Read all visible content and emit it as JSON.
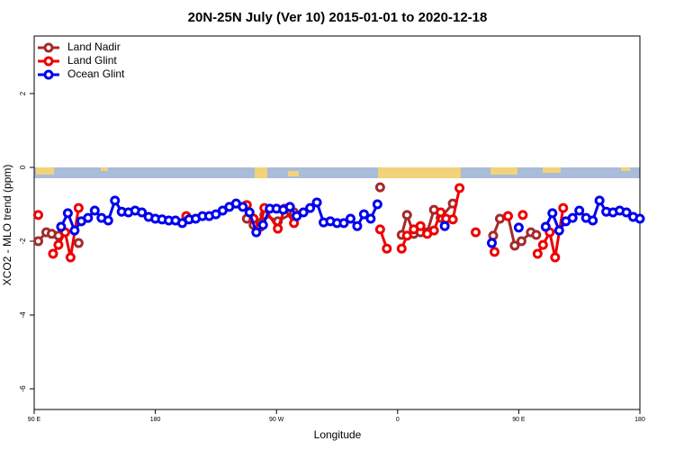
{
  "chart_data": {
    "type": "line",
    "title": "20N-25N July (Ver 10)   2015-01-01 to 2020-12-18",
    "x_label": "Longitude",
    "y_label": "XCO2 - MLO trend (ppm)",
    "xlim": [
      90,
      540
    ],
    "xticks": [
      {
        "value": 90,
        "label": "90 E"
      },
      {
        "value": 180,
        "label": "180"
      },
      {
        "value": 270,
        "label": "90 W"
      },
      {
        "value": 360,
        "label": "0"
      },
      {
        "value": 450,
        "label": "90 E"
      },
      {
        "value": 540,
        "label": "180"
      }
    ],
    "ylim": [
      -6.56,
      3.56
    ],
    "yticks": [
      2,
      0,
      -2,
      -4,
      -6
    ],
    "legend": "top-left",
    "series": [
      {
        "name": "Land Nadir",
        "color": "#a52a2a",
        "x": [
          93,
          99,
          103,
          108,
          null,
          123,
          null,
          248,
          253,
          261,
          271,
          283,
          null,
          347,
          null,
          363,
          367,
          372,
          377,
          382,
          387,
          392,
          401,
          null,
          431,
          436,
          442,
          447,
          452,
          459,
          463
        ],
        "values": [
          -2.0,
          -1.76,
          -1.8,
          -1.85,
          null,
          -2.05,
          null,
          -1.39,
          -1.56,
          -1.29,
          -1.46,
          -1.22,
          null,
          -0.54,
          null,
          -1.83,
          -1.29,
          -1.8,
          -1.76,
          -1.76,
          -1.15,
          -1.37,
          -0.98,
          null,
          -1.85,
          -1.39,
          -1.32,
          -2.12,
          -2.0,
          -1.76,
          -1.83
        ]
      },
      {
        "name": "Land Glint",
        "color": "#ee0000",
        "x": [
          93,
          null,
          104,
          108,
          113,
          117,
          123,
          null,
          203,
          null,
          248,
          253,
          258,
          261,
          271,
          276,
          283,
          null,
          347,
          352,
          null,
          363,
          367,
          372,
          377,
          382,
          387,
          392,
          396,
          401,
          406,
          null,
          418,
          null,
          432,
          null,
          442,
          null,
          453,
          null,
          464,
          468,
          473,
          477,
          483
        ],
        "values": [
          -1.29,
          null,
          -2.34,
          -2.1,
          -1.76,
          -2.44,
          -1.1,
          null,
          -1.32,
          null,
          -1.02,
          -1.39,
          -1.61,
          -1.1,
          -1.66,
          -1.12,
          -1.51,
          null,
          -1.68,
          -2.2,
          null,
          -2.2,
          -1.85,
          -1.68,
          -1.59,
          -1.8,
          -1.71,
          -1.22,
          -1.39,
          -1.41,
          -0.56,
          null,
          -1.76,
          null,
          -2.29,
          null,
          -1.32,
          null,
          -1.29,
          null,
          -2.34,
          -2.1,
          -1.76,
          -2.44,
          -1.1
        ]
      },
      {
        "name": "Ocean Glint",
        "color": "#0000ee",
        "x": [
          110,
          115,
          120,
          125,
          130,
          135,
          140,
          145,
          150,
          155,
          160,
          165,
          170,
          175,
          180,
          185,
          190,
          195,
          200,
          205,
          210,
          215,
          220,
          225,
          230,
          235,
          240,
          245,
          250,
          255,
          260,
          265,
          270,
          275,
          280,
          285,
          290,
          295,
          300,
          305,
          310,
          315,
          320,
          325,
          330,
          335,
          340,
          345,
          null,
          395,
          null,
          430,
          null,
          450,
          null,
          470,
          475,
          480,
          485,
          490,
          495,
          500,
          505,
          510,
          515,
          520,
          525,
          530,
          535,
          540
        ],
        "values": [
          -1.61,
          -1.24,
          -1.71,
          -1.46,
          -1.37,
          -1.17,
          -1.37,
          -1.44,
          -0.9,
          -1.2,
          -1.22,
          -1.17,
          -1.22,
          -1.34,
          -1.39,
          -1.41,
          -1.44,
          -1.44,
          -1.51,
          -1.41,
          -1.39,
          -1.32,
          -1.32,
          -1.27,
          -1.17,
          -1.07,
          -0.98,
          -1.07,
          -1.22,
          -1.76,
          -1.56,
          -1.12,
          -1.12,
          -1.15,
          -1.07,
          -1.32,
          -1.22,
          -1.1,
          -0.95,
          -1.49,
          -1.46,
          -1.51,
          -1.51,
          -1.39,
          -1.59,
          -1.27,
          -1.39,
          -1.0,
          null,
          -1.59,
          null,
          -2.05,
          null,
          -1.63,
          null,
          -1.61,
          -1.24,
          -1.71,
          -1.46,
          -1.37,
          -1.17,
          -1.37,
          -1.44,
          -0.9,
          -1.2,
          -1.22,
          -1.17,
          -1.22,
          -1.34,
          -1.39
        ]
      }
    ]
  }
}
